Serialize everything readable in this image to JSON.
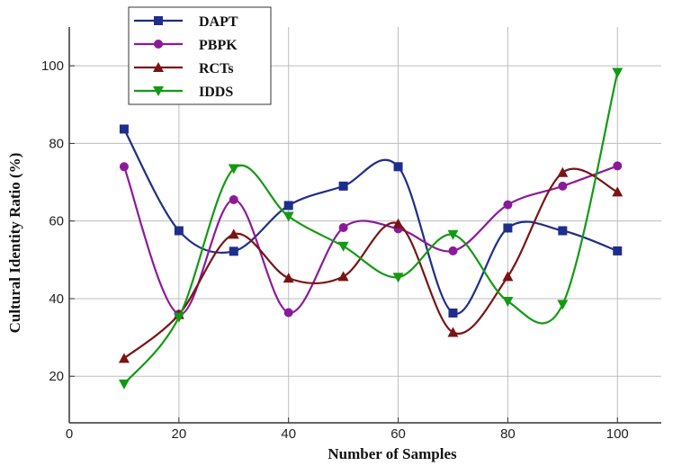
{
  "chart_data": {
    "type": "line",
    "title": "",
    "xlabel": "Number of Samples",
    "ylabel": "Cultural Identity Ratio (%)",
    "xlim": [
      0,
      108
    ],
    "ylim": [
      8,
      110
    ],
    "xticks": [
      0,
      20,
      40,
      60,
      80,
      100
    ],
    "yticks": [
      20,
      40,
      60,
      80,
      100
    ],
    "grid": true,
    "legend_position": "top-left",
    "series": [
      {
        "name": "DAPT",
        "color": "#1f2d8c",
        "marker": "square",
        "x": [
          10,
          20,
          30,
          40,
          50,
          60,
          70,
          80,
          90,
          100
        ],
        "y": [
          83.7,
          57.5,
          52.2,
          64.0,
          69.0,
          74.0,
          36.3,
          58.2,
          57.5,
          52.3
        ]
      },
      {
        "name": "PBPK",
        "color": "#8b1a9a",
        "marker": "circle",
        "x": [
          10,
          20,
          30,
          40,
          50,
          60,
          70,
          80,
          90,
          100
        ],
        "y": [
          74.0,
          36.0,
          65.5,
          36.4,
          58.3,
          58.0,
          52.3,
          64.2,
          69.0,
          74.2
        ]
      },
      {
        "name": "RCTs",
        "color": "#7a1414",
        "marker": "triangle-up",
        "x": [
          10,
          20,
          30,
          40,
          50,
          60,
          70,
          80,
          90,
          100
        ],
        "y": [
          24.6,
          35.9,
          56.6,
          45.3,
          45.7,
          59.3,
          31.3,
          45.7,
          72.5,
          67.5
        ]
      },
      {
        "name": "IDDS",
        "color": "#139a13",
        "marker": "triangle-down",
        "x": [
          10,
          20,
          30,
          40,
          50,
          60,
          70,
          80,
          90,
          100
        ],
        "y": [
          18.0,
          35.2,
          73.5,
          61.2,
          53.5,
          45.5,
          56.5,
          39.3,
          38.5,
          98.3
        ]
      }
    ]
  }
}
